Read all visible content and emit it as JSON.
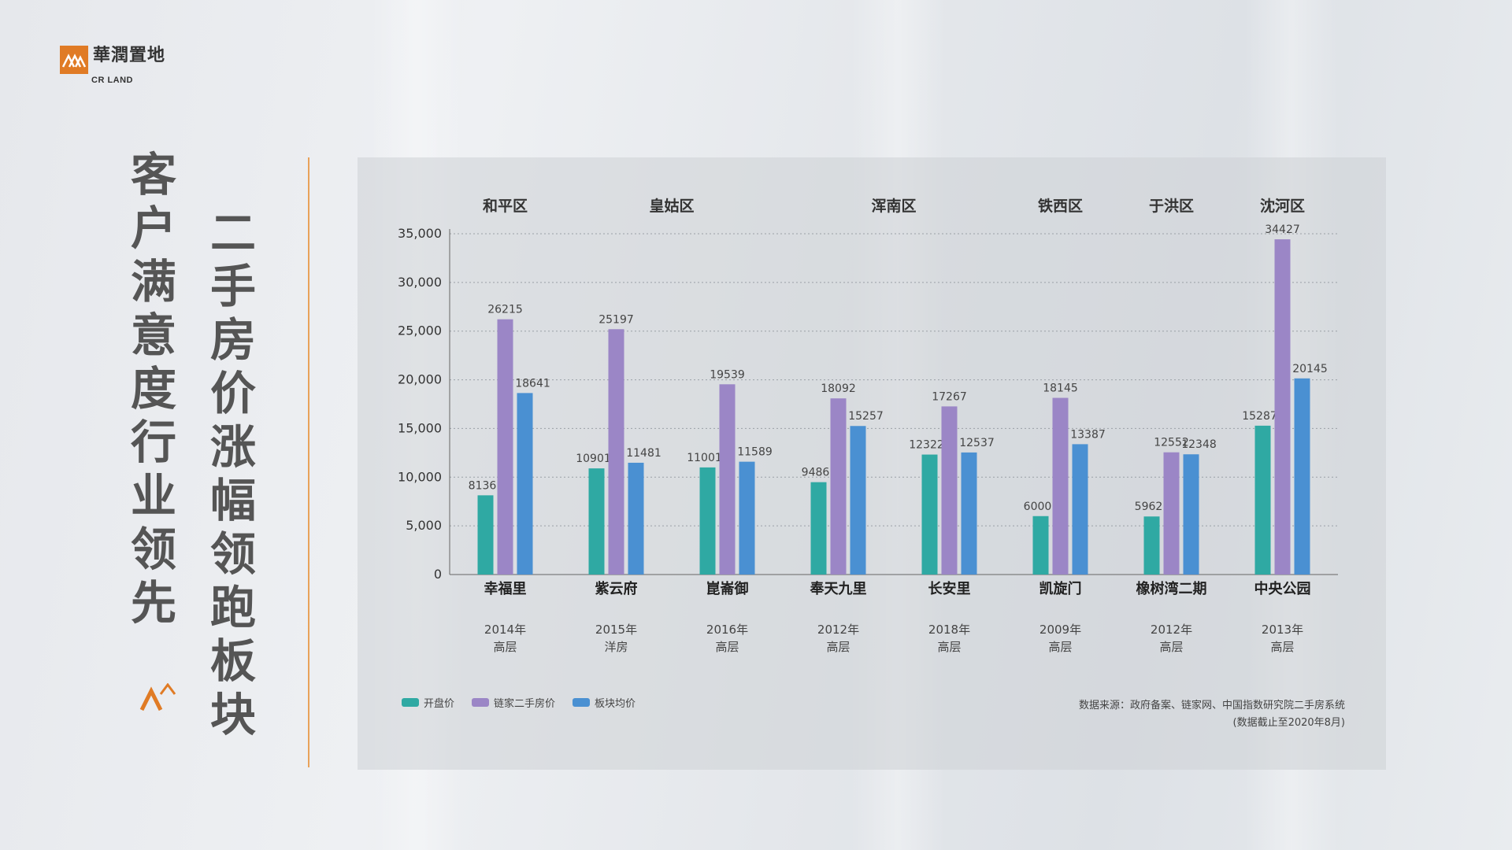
{
  "brand": {
    "name_cn": "華潤置地",
    "name_en": "CR LAND",
    "accent": "#e07b25"
  },
  "title_lines": [
    "客户满意度行业领先",
    "二手房价涨幅领跑板块"
  ],
  "colors": {
    "open_price": "#2fa9a3",
    "lianjia": "#9b86c6",
    "block_avg": "#4a90d2",
    "divider": "#e8a25a"
  },
  "chart_data": {
    "type": "bar",
    "ylim": [
      0,
      35000
    ],
    "yticks": [
      {
        "value": 0,
        "label": "0"
      },
      {
        "value": 5000,
        "label": "5,000"
      },
      {
        "value": 10000,
        "label": "10,000"
      },
      {
        "value": 15000,
        "label": "15,000"
      },
      {
        "value": 20000,
        "label": "20,000"
      },
      {
        "value": 25000,
        "label": "25,000"
      },
      {
        "value": 30000,
        "label": "30,000"
      },
      {
        "value": 35000,
        "label": "35,000"
      }
    ],
    "grid": true,
    "legend_position": "bottom-left",
    "districts": [
      {
        "name": "和平区",
        "span": [
          0,
          0
        ]
      },
      {
        "name": "皇姑区",
        "span": [
          1,
          2
        ]
      },
      {
        "name": "浑南区",
        "span": [
          3,
          4
        ]
      },
      {
        "name": "铁西区",
        "span": [
          5,
          5
        ]
      },
      {
        "name": "于洪区",
        "span": [
          6,
          6
        ]
      },
      {
        "name": "沈河区",
        "span": [
          7,
          7
        ]
      }
    ],
    "categories": [
      "幸福里",
      "紫云府",
      "崑崙御",
      "奉天九里",
      "长安里",
      "凯旋门",
      "橡树湾二期",
      "中央公园"
    ],
    "category_years": [
      "2014年",
      "2015年",
      "2016年",
      "2012年",
      "2018年",
      "2009年",
      "2012年",
      "2013年"
    ],
    "category_types": [
      "高层",
      "洋房",
      "高层",
      "高层",
      "高层",
      "高层",
      "高层",
      "高层"
    ],
    "series": [
      {
        "name": "开盘价",
        "color": "#2fa9a3",
        "values": [
          8136,
          10901,
          11001,
          9486,
          12322,
          6000,
          5962,
          15287
        ]
      },
      {
        "name": "链家二手房价",
        "color": "#9b86c6",
        "values": [
          26215,
          25197,
          19539,
          18092,
          17267,
          18145,
          12552,
          34427
        ]
      },
      {
        "name": "板块均价",
        "color": "#4a90d2",
        "values": [
          18641,
          11481,
          11589,
          15257,
          12537,
          13387,
          12348,
          20145
        ]
      }
    ],
    "source": "数据来源：政府备案、链家网、中国指数研究院二手房系统",
    "date_note": "(数据截止至2020年8月)"
  }
}
